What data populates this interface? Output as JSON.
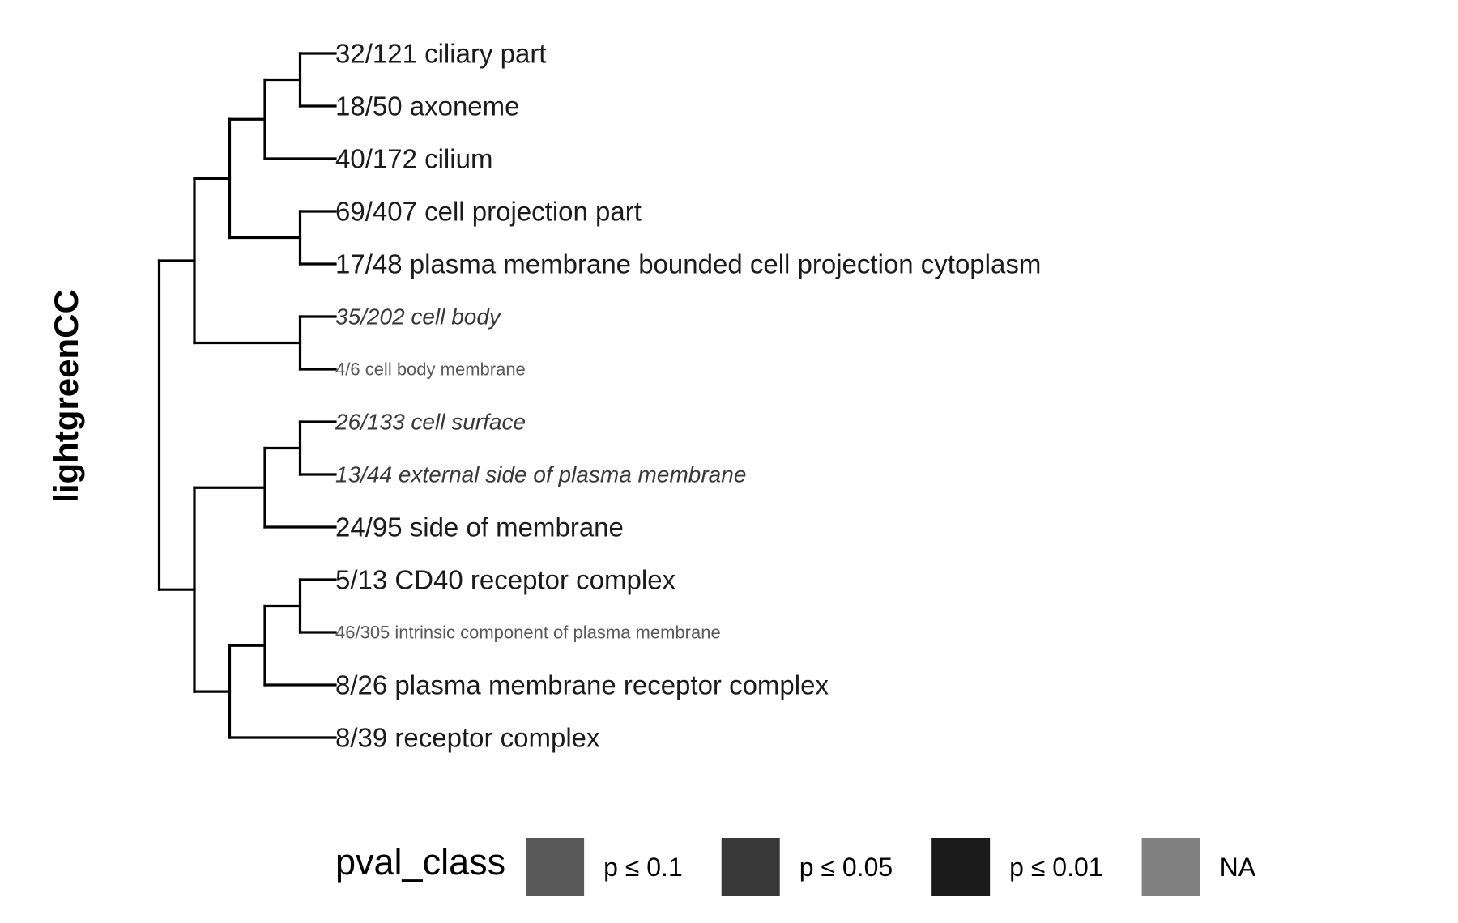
{
  "cluster_label": "lightgreenCC",
  "legend": {
    "title": "pval_class",
    "items": [
      {
        "label": "p ≤ 0.1",
        "color": "#595959"
      },
      {
        "label": "p ≤ 0.05",
        "color": "#383838"
      },
      {
        "label": "p ≤ 0.01",
        "color": "#1b1b1b"
      },
      {
        "label": "NA",
        "color": "#808080"
      }
    ]
  },
  "tree": {
    "leaves": [
      {
        "label": "32/121 ciliary part",
        "pval_class": "p ≤ 0.01"
      },
      {
        "label": "18/50 axoneme",
        "pval_class": "p ≤ 0.01"
      },
      {
        "label": "40/172 cilium",
        "pval_class": "p ≤ 0.01"
      },
      {
        "label": "69/407 cell projection part",
        "pval_class": "p ≤ 0.01"
      },
      {
        "label": "17/48 plasma membrane bounded cell projection cytoplasm",
        "pval_class": "p ≤ 0.01"
      },
      {
        "label": "35/202 cell body",
        "pval_class": "p ≤ 0.05"
      },
      {
        "label": "4/6 cell body membrane",
        "pval_class": "p ≤ 0.1"
      },
      {
        "label": "26/133 cell surface",
        "pval_class": "p ≤ 0.05"
      },
      {
        "label": "13/44 external side of plasma membrane",
        "pval_class": "p ≤ 0.05"
      },
      {
        "label": "24/95 side of membrane",
        "pval_class": "p ≤ 0.01"
      },
      {
        "label": "5/13 CD40 receptor complex",
        "pval_class": "p ≤ 0.01"
      },
      {
        "label": "46/305 intrinsic component of plasma membrane",
        "pval_class": "p ≤ 0.1"
      },
      {
        "label": "8/26 plasma membrane receptor complex",
        "pval_class": "p ≤ 0.01"
      },
      {
        "label": "8/39 receptor complex",
        "pval_class": "p ≤ 0.01"
      }
    ],
    "topology": [
      [
        [
          [
            [
              0,
              1
            ],
            2
          ],
          [
            3,
            4
          ]
        ],
        [
          5,
          6
        ]
      ],
      [
        [
          [
            7,
            8
          ],
          9
        ],
        [
          [
            [
              10,
              11
            ],
            12
          ],
          13
        ]
      ]
    ]
  }
}
